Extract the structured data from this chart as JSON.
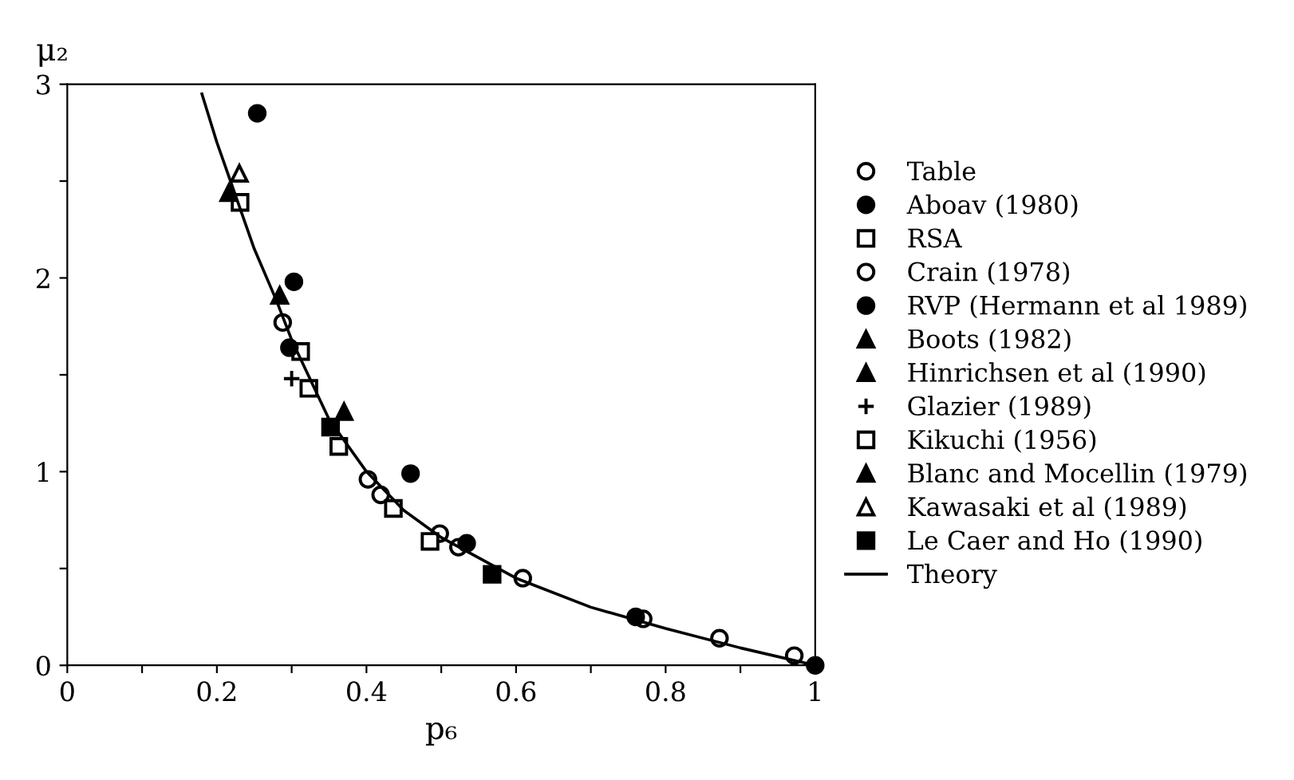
{
  "chart_data": {
    "type": "scatter",
    "xlabel": "p₆",
    "ylabel": "μ₂",
    "xlim": [
      0,
      1
    ],
    "ylim": [
      0,
      3
    ],
    "xticks": [
      0,
      {
        "value": 0.1,
        "label": null
      },
      {
        "value": 0.2,
        "label": "0.2"
      },
      {
        "value": 0.3,
        "label": null
      },
      {
        "value": 0.4,
        "label": "0.4"
      },
      {
        "value": 0.5,
        "label": null
      },
      {
        "value": 0.6,
        "label": "0.6"
      },
      {
        "value": 0.7,
        "label": null
      },
      {
        "value": 0.8,
        "label": "0.8"
      },
      {
        "value": 0.9,
        "label": null
      },
      1
    ],
    "yticks": [
      0,
      {
        "value": 0.5,
        "label": null
      },
      1,
      {
        "value": 1.5,
        "label": null
      },
      2,
      {
        "value": 2.5,
        "label": null
      },
      3
    ],
    "grid": false,
    "legend": "right",
    "series": [
      {
        "name": "Table",
        "color": "#ffffff",
        "marker": "circle",
        "x": [
          0.402,
          0.419,
          0.498,
          0.523,
          0.609,
          0.77,
          0.872,
          0.972
        ],
        "values": [
          0.96,
          0.88,
          0.68,
          0.61,
          0.45,
          0.24,
          0.14,
          0.05
        ]
      },
      {
        "name": "Aboav (1980)",
        "color": "#000000",
        "marker": "circle",
        "x": [
          0.254,
          0.303,
          0.459,
          0.534,
          0.76,
          1.0
        ],
        "values": [
          2.85,
          1.98,
          0.99,
          0.63,
          0.25,
          0.0
        ]
      },
      {
        "name": "RSA",
        "color": "#ffffff",
        "marker": "square",
        "x": [
          0.312,
          0.323,
          0.363,
          0.436,
          0.485
        ],
        "values": [
          1.62,
          1.43,
          1.13,
          0.81,
          0.64
        ]
      },
      {
        "name": "Crain (1978)",
        "color": "#ffffff",
        "marker": "circle",
        "x": [
          0.288
        ],
        "values": [
          1.77
        ]
      },
      {
        "name": "RVP (Hermann et al 1989)",
        "color": "#000000",
        "marker": "circle",
        "x": [
          0.297
        ],
        "values": [
          1.64
        ]
      },
      {
        "name": "Boots (1982)",
        "color": "#000000",
        "marker": "triangle",
        "x": [
          0.284
        ],
        "values": [
          1.91
        ]
      },
      {
        "name": "Hinrichsen et al (1990)",
        "color": "#000000",
        "marker": "triangle",
        "x": [
          0.37
        ],
        "values": [
          1.31
        ]
      },
      {
        "name": "Glazier (1989)",
        "color": "#000000",
        "marker": "cross",
        "x": [
          0.3
        ],
        "values": [
          1.48
        ]
      },
      {
        "name": "Kikuchi (1956)",
        "color": "#ffffff",
        "marker": "square",
        "x": [
          0.231
        ],
        "values": [
          2.39
        ]
      },
      {
        "name": "Blanc and Mocellin (1979)",
        "color": "#000000",
        "marker": "triangle",
        "x": [
          0.216
        ],
        "values": [
          2.44
        ]
      },
      {
        "name": "Kawasaki et al (1989)",
        "color": "#ffffff",
        "marker": "triangle",
        "x": [
          0.23
        ],
        "values": [
          2.54
        ]
      },
      {
        "name": "Le Caer and Ho (1990)",
        "color": "#000000",
        "marker": "square",
        "x": [
          0.352,
          0.568
        ],
        "values": [
          1.23,
          0.47
        ]
      },
      {
        "name": "Theory",
        "type": "line",
        "color": "#000000",
        "marker": "none",
        "line_style": "solid",
        "x": [
          0.18,
          0.2,
          0.22,
          0.25,
          0.28,
          0.3,
          0.35,
          0.4,
          0.45,
          0.5,
          0.6,
          0.7,
          0.8,
          0.9,
          1.0
        ],
        "values": [
          2.95,
          2.7,
          2.48,
          2.15,
          1.88,
          1.68,
          1.27,
          1.0,
          0.8,
          0.66,
          0.45,
          0.3,
          0.19,
          0.09,
          0.0
        ]
      }
    ]
  }
}
